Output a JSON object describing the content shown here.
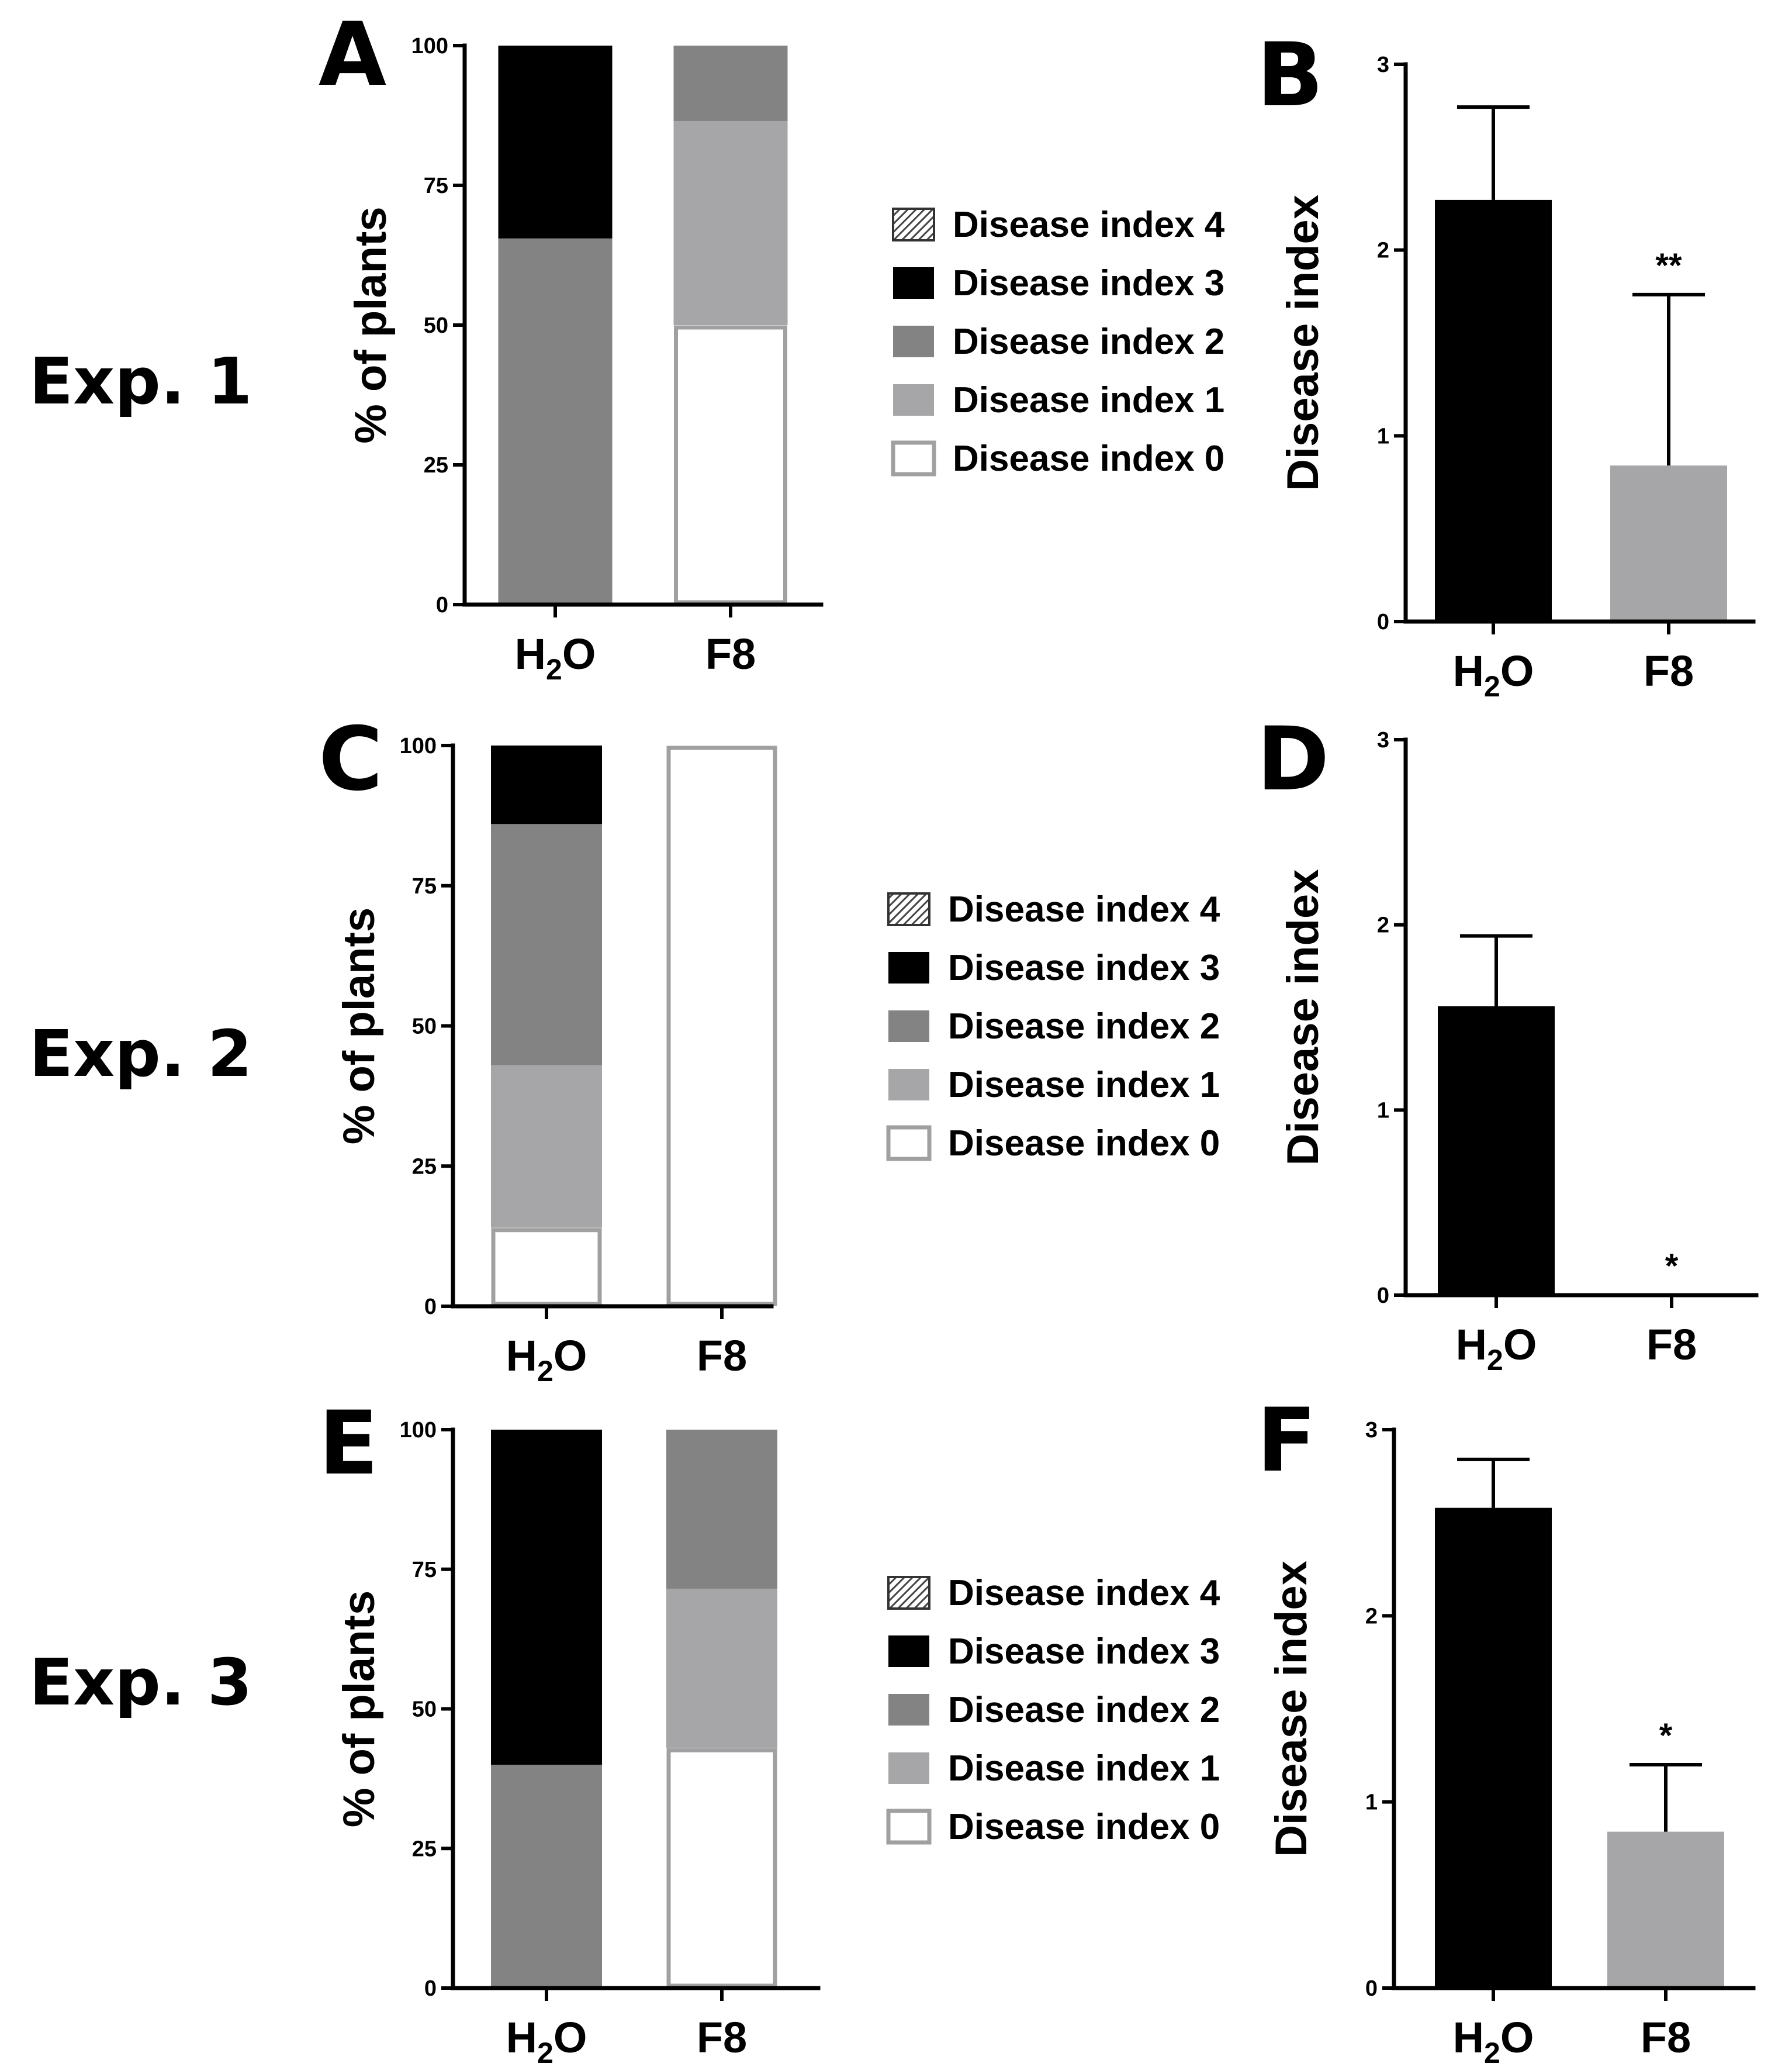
{
  "colors": {
    "di0": "#ffffff",
    "di1": "#a6a6a8",
    "di2": "#838383",
    "di3": "#000000",
    "di4_hatch": "#555555",
    "outline_di0": "#a0a0a0"
  },
  "experiments": [
    {
      "label": "Exp. 1"
    },
    {
      "label": "Exp. 2"
    },
    {
      "label": "Exp. 3"
    }
  ],
  "legend": {
    "entries": [
      "Disease index 4",
      "Disease index 3",
      "Disease index 2",
      "Disease index 1",
      "Disease index 0"
    ],
    "entry_keys": [
      "di4",
      "di3",
      "di2",
      "di1",
      "di0"
    ]
  },
  "chart_data": [
    {
      "panel": "A",
      "type": "bar",
      "stacked": true,
      "ylabel": "% of plants",
      "ylim": [
        0,
        100
      ],
      "yticks": [
        "0",
        "25",
        "50",
        "75",
        "100"
      ],
      "categories": [
        "H2O",
        "F8"
      ],
      "series": [
        {
          "name": "Disease index 0",
          "key": "di0",
          "values": [
            0,
            50
          ]
        },
        {
          "name": "Disease index 1",
          "key": "di1",
          "values": [
            0,
            36.5
          ]
        },
        {
          "name": "Disease index 2",
          "key": "di2",
          "values": [
            65.5,
            13.5
          ]
        },
        {
          "name": "Disease index 3",
          "key": "di3",
          "values": [
            34.5,
            0
          ]
        },
        {
          "name": "Disease index 4",
          "key": "di4",
          "values": [
            0,
            0
          ]
        }
      ]
    },
    {
      "panel": "B",
      "type": "bar",
      "ylabel": "Disease index",
      "ylim": [
        0,
        3
      ],
      "yticks": [
        "0",
        "1",
        "2",
        "3"
      ],
      "categories": [
        "H2O",
        "F8"
      ],
      "values": [
        2.27,
        0.84
      ],
      "errors": [
        0.5,
        0.92
      ],
      "bar_keys": [
        "di3",
        "di1"
      ],
      "significance": [
        "",
        "**"
      ]
    },
    {
      "panel": "C",
      "type": "bar",
      "stacked": true,
      "ylabel": "% of plants",
      "ylim": [
        0,
        100
      ],
      "yticks": [
        "0",
        "25",
        "50",
        "75",
        "100"
      ],
      "categories": [
        "H2O",
        "F8"
      ],
      "series": [
        {
          "name": "Disease index 0",
          "key": "di0",
          "values": [
            14,
            100
          ]
        },
        {
          "name": "Disease index 1",
          "key": "di1",
          "values": [
            29,
            0
          ]
        },
        {
          "name": "Disease index 2",
          "key": "di2",
          "values": [
            43,
            0
          ]
        },
        {
          "name": "Disease index 3",
          "key": "di3",
          "values": [
            14,
            0
          ]
        },
        {
          "name": "Disease index 4",
          "key": "di4",
          "values": [
            0,
            0
          ]
        }
      ]
    },
    {
      "panel": "D",
      "type": "bar",
      "ylabel": "Disease index",
      "ylim": [
        0,
        3
      ],
      "yticks": [
        "0",
        "1",
        "2",
        "3"
      ],
      "categories": [
        "H2O",
        "F8"
      ],
      "values": [
        1.56,
        0
      ],
      "errors": [
        0.38,
        0
      ],
      "bar_keys": [
        "di3",
        "di1"
      ],
      "significance": [
        "",
        "*"
      ]
    },
    {
      "panel": "E",
      "type": "bar",
      "stacked": true,
      "ylabel": "% of plants",
      "ylim": [
        0,
        100
      ],
      "yticks": [
        "0",
        "25",
        "50",
        "75",
        "100"
      ],
      "categories": [
        "H2O",
        "F8"
      ],
      "series": [
        {
          "name": "Disease index 0",
          "key": "di0",
          "values": [
            0,
            43
          ]
        },
        {
          "name": "Disease index 1",
          "key": "di1",
          "values": [
            0,
            28.5
          ]
        },
        {
          "name": "Disease index 2",
          "key": "di2",
          "values": [
            40,
            28.5
          ]
        },
        {
          "name": "Disease index 3",
          "key": "di3",
          "values": [
            60,
            0
          ]
        },
        {
          "name": "Disease index 4",
          "key": "di4",
          "values": [
            0,
            0
          ]
        }
      ]
    },
    {
      "panel": "F",
      "type": "bar",
      "ylabel": "Disease index",
      "ylim": [
        0,
        3
      ],
      "yticks": [
        "0",
        "1",
        "2",
        "3"
      ],
      "categories": [
        "H2O",
        "F8"
      ],
      "values": [
        2.58,
        0.84
      ],
      "errors": [
        0.26,
        0.36
      ],
      "bar_keys": [
        "di3",
        "di1"
      ],
      "significance": [
        "",
        "*"
      ]
    }
  ]
}
